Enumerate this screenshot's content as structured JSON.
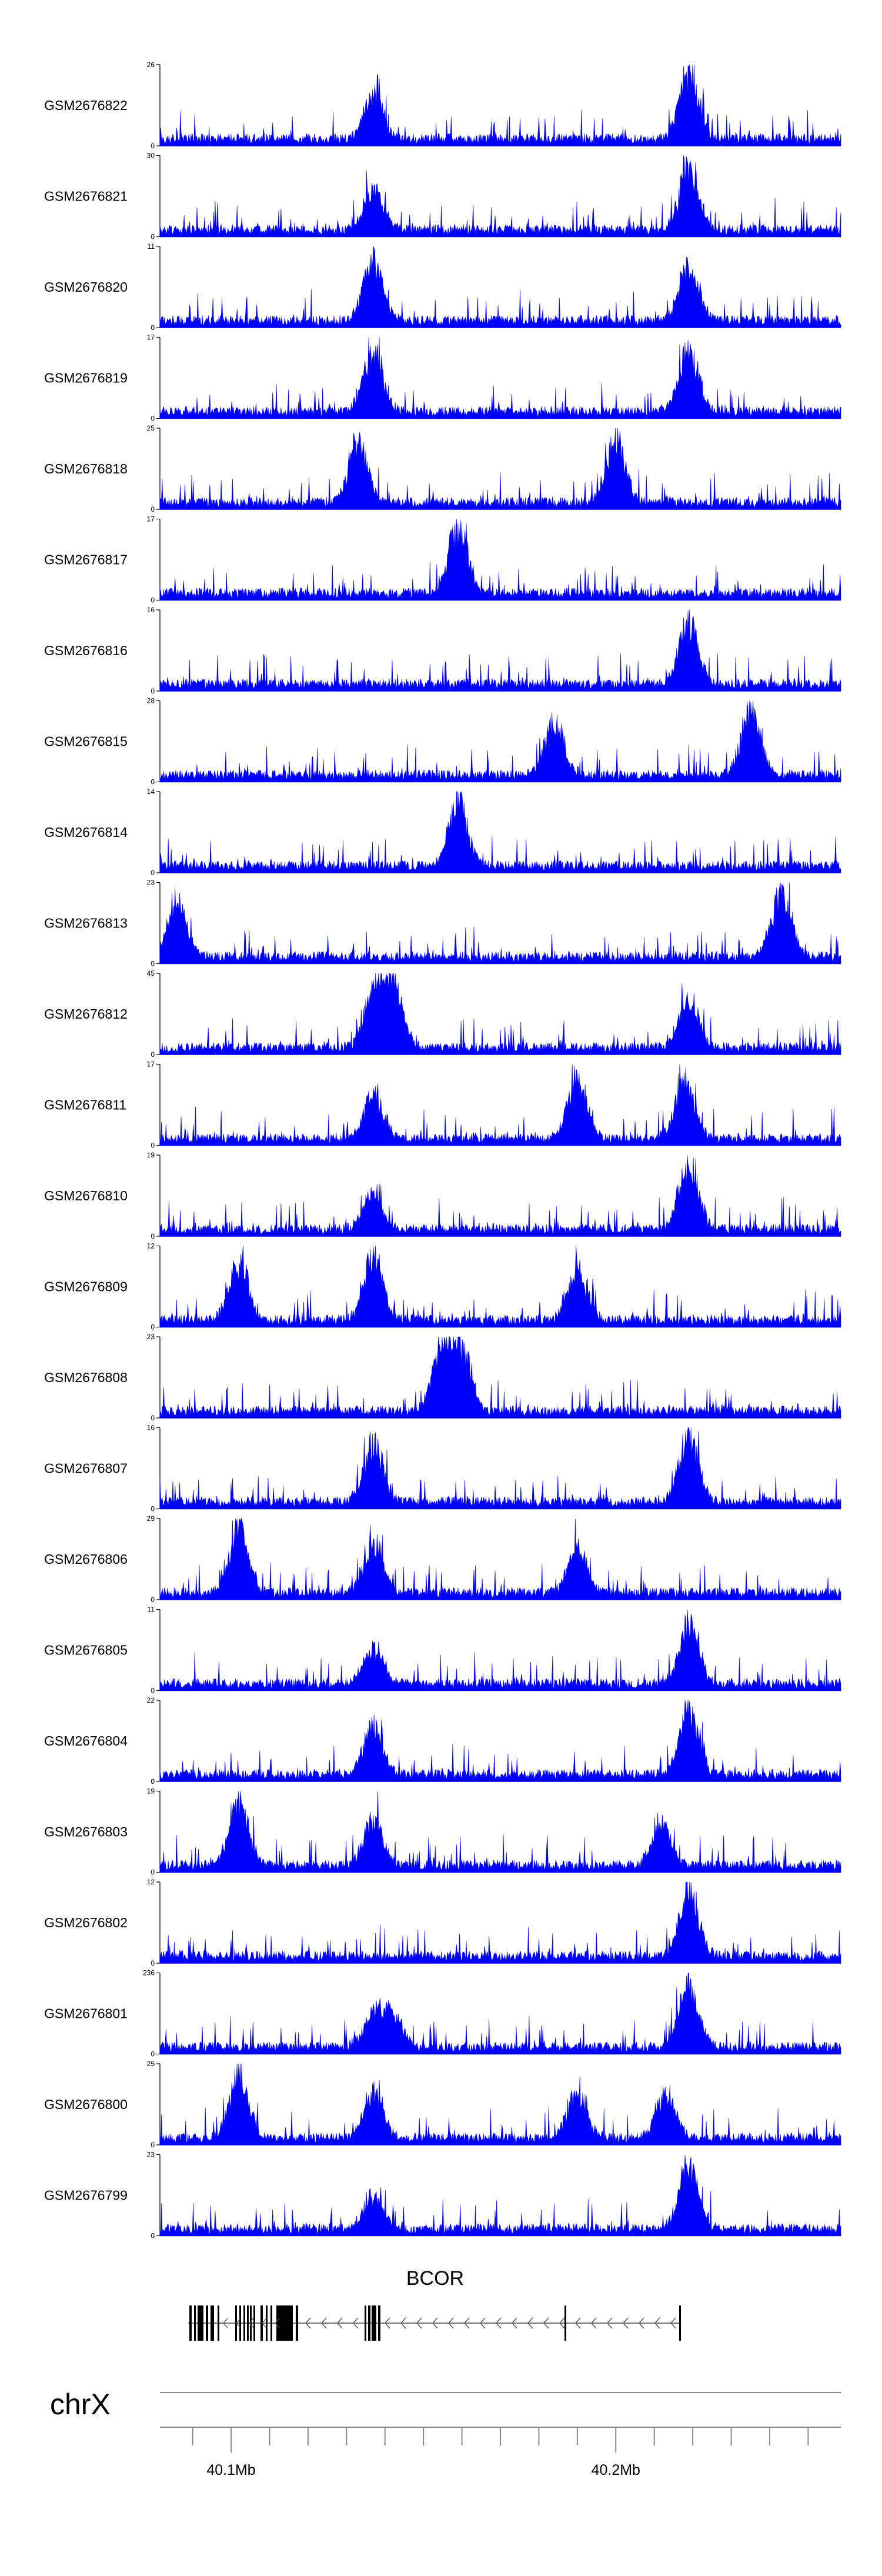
{
  "chart_data": {
    "type": "area",
    "fill_color": "#0000ff",
    "chromosome": "chrX",
    "gene": {
      "name": "BCOR",
      "strand": "-"
    },
    "x_range_mb": [
      40.0815,
      40.2585
    ],
    "x_tick_labels": [
      {
        "value": 40.1,
        "label": "40.1Mb"
      },
      {
        "value": 40.2,
        "label": "40.2Mb"
      }
    ],
    "tracks": [
      {
        "label": "GSM2676822",
        "ymax": 26,
        "ymax_label": "26",
        "ymin_label": "0",
        "peaks": [
          [
            40.137,
            0.65
          ],
          [
            40.219,
            1.0
          ]
        ]
      },
      {
        "label": "GSM2676821",
        "ymax": 30,
        "ymax_label": "30",
        "ymin_label": "0",
        "peaks": [
          [
            40.137,
            0.6
          ],
          [
            40.219,
            0.95
          ]
        ]
      },
      {
        "label": "GSM2676820",
        "ymax": 11,
        "ymax_label": "11",
        "ymin_label": "0",
        "peaks": [
          [
            40.137,
            0.95
          ],
          [
            40.219,
            0.9
          ]
        ]
      },
      {
        "label": "GSM2676819",
        "ymax": 17,
        "ymax_label": "17",
        "ymin_label": "0",
        "peaks": [
          [
            40.137,
            0.95
          ],
          [
            40.219,
            0.95
          ]
        ]
      },
      {
        "label": "GSM2676818",
        "ymax": 25,
        "ymax_label": "25",
        "ymin_label": "0",
        "peaks": [
          [
            40.133,
            0.95
          ],
          [
            40.2,
            0.95
          ]
        ]
      },
      {
        "label": "GSM2676817",
        "ymax": 17,
        "ymax_label": "17",
        "ymin_label": "0",
        "peaks": [
          [
            40.159,
            1.0
          ]
        ]
      },
      {
        "label": "GSM2676816",
        "ymax": 16,
        "ymax_label": "16",
        "ymin_label": "0",
        "peaks": [
          [
            40.219,
            0.95
          ]
        ]
      },
      {
        "label": "GSM2676815",
        "ymax": 28,
        "ymax_label": "28",
        "ymin_label": "0",
        "peaks": [
          [
            40.184,
            0.8
          ],
          [
            40.235,
            1.0
          ]
        ]
      },
      {
        "label": "GSM2676814",
        "ymax": 14,
        "ymax_label": "14",
        "ymin_label": "0",
        "peaks": [
          [
            40.159,
            0.95
          ]
        ]
      },
      {
        "label": "GSM2676813",
        "ymax": 23,
        "ymax_label": "23",
        "ymin_label": "0",
        "peaks": [
          [
            40.086,
            0.9
          ],
          [
            40.243,
            1.0
          ]
        ]
      },
      {
        "label": "GSM2676812",
        "ymax": 45,
        "ymax_label": "45",
        "ymin_label": "0",
        "peaks": [
          [
            40.137,
            0.8
          ],
          [
            40.142,
            1.0
          ],
          [
            40.219,
            0.75
          ]
        ]
      },
      {
        "label": "GSM2676811",
        "ymax": 17,
        "ymax_label": "17",
        "ymin_label": "0",
        "peaks": [
          [
            40.137,
            0.7
          ],
          [
            40.19,
            0.95
          ],
          [
            40.218,
            0.85
          ]
        ]
      },
      {
        "label": "GSM2676810",
        "ymax": 19,
        "ymax_label": "19",
        "ymin_label": "0",
        "peaks": [
          [
            40.137,
            0.55
          ],
          [
            40.219,
            1.0
          ]
        ]
      },
      {
        "label": "GSM2676809",
        "ymax": 12,
        "ymax_label": "12",
        "ymin_label": "0",
        "peaks": [
          [
            40.102,
            0.9
          ],
          [
            40.137,
            1.0
          ],
          [
            40.19,
            0.8
          ]
        ]
      },
      {
        "label": "GSM2676808",
        "ymax": 23,
        "ymax_label": "23",
        "ymin_label": "0",
        "peaks": [
          [
            40.155,
            1.0
          ],
          [
            40.16,
            0.9
          ]
        ]
      },
      {
        "label": "GSM2676807",
        "ymax": 16,
        "ymax_label": "16",
        "ymin_label": "0",
        "peaks": [
          [
            40.137,
            0.9
          ],
          [
            40.219,
            1.0
          ]
        ]
      },
      {
        "label": "GSM2676806",
        "ymax": 29,
        "ymax_label": "29",
        "ymin_label": "0",
        "peaks": [
          [
            40.102,
            1.0
          ],
          [
            40.137,
            0.8
          ],
          [
            40.19,
            0.7
          ]
        ]
      },
      {
        "label": "GSM2676805",
        "ymax": 11,
        "ymax_label": "11",
        "ymin_label": "0",
        "peaks": [
          [
            40.137,
            0.6
          ],
          [
            40.219,
            1.0
          ]
        ]
      },
      {
        "label": "GSM2676804",
        "ymax": 22,
        "ymax_label": "22",
        "ymin_label": "0",
        "peaks": [
          [
            40.137,
            0.75
          ],
          [
            40.219,
            1.0
          ]
        ]
      },
      {
        "label": "GSM2676803",
        "ymax": 19,
        "ymax_label": "19",
        "ymin_label": "0",
        "peaks": [
          [
            40.102,
            1.0
          ],
          [
            40.137,
            0.7
          ],
          [
            40.212,
            0.6
          ]
        ]
      },
      {
        "label": "GSM2676802",
        "ymax": 12,
        "ymax_label": "12",
        "ymin_label": "0",
        "peaks": [
          [
            40.219,
            1.0
          ]
        ]
      },
      {
        "label": "GSM2676801",
        "ymax": 236,
        "ymax_label": "236",
        "ymin_label": "0",
        "peaks": [
          [
            40.137,
            0.5
          ],
          [
            40.142,
            0.5
          ],
          [
            40.219,
            1.0
          ]
        ]
      },
      {
        "label": "GSM2676800",
        "ymax": 25,
        "ymax_label": "25",
        "ymin_label": "0",
        "peaks": [
          [
            40.102,
            1.0
          ],
          [
            40.137,
            0.7
          ],
          [
            40.19,
            0.7
          ],
          [
            40.213,
            0.7
          ]
        ]
      },
      {
        "label": "GSM2676799",
        "ymax": 23,
        "ymax_label": "23",
        "ymin_label": "0",
        "peaks": [
          [
            40.137,
            0.5
          ],
          [
            40.219,
            1.0
          ]
        ]
      }
    ]
  }
}
